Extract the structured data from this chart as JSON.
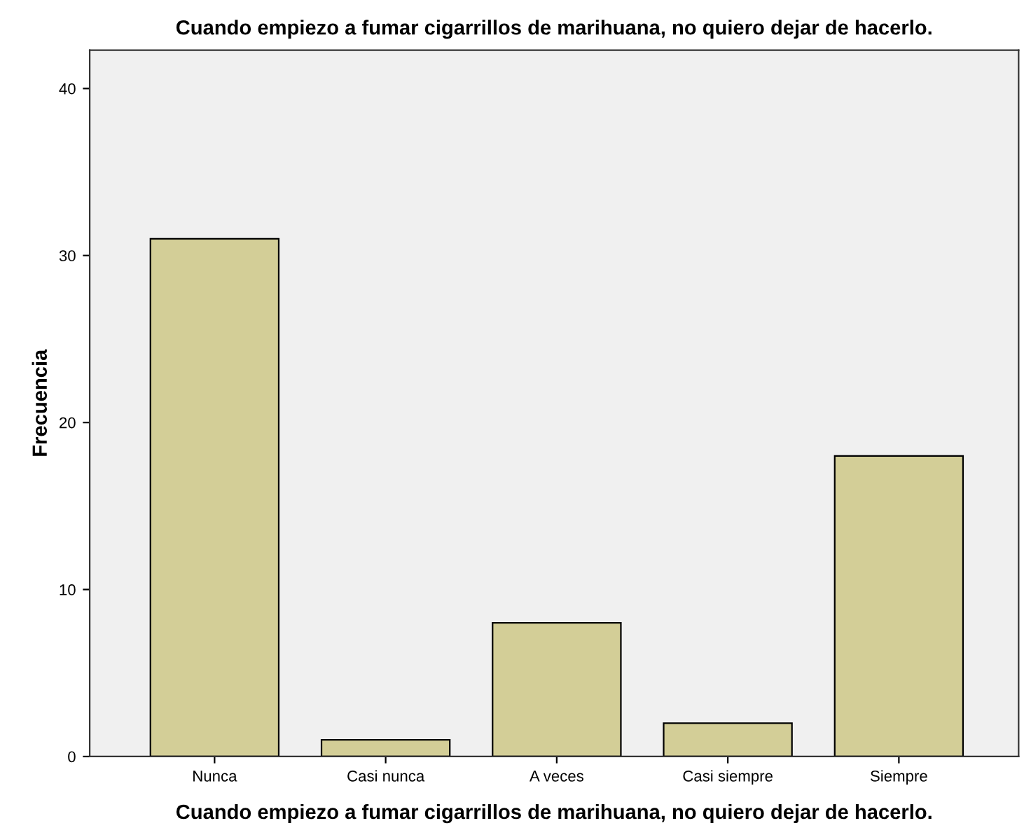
{
  "chart_data": {
    "type": "bar",
    "title": "Cuando empiezo a fumar cigarrillos de marihuana, no quiero dejar de hacerlo.",
    "xlabel": "Cuando empiezo a fumar cigarrillos de marihuana, no quiero dejar de hacerlo.",
    "ylabel": "Frecuencia",
    "categories": [
      "Nunca",
      "Casi nunca",
      "A veces",
      "Casi siempre",
      "Siempre"
    ],
    "values": [
      31,
      1,
      8,
      2,
      18
    ],
    "color": "#d3ce97",
    "ylim": [
      0,
      42.3
    ],
    "yticks": [
      0,
      10,
      20,
      30,
      40
    ],
    "grid": false,
    "legend": false
  }
}
